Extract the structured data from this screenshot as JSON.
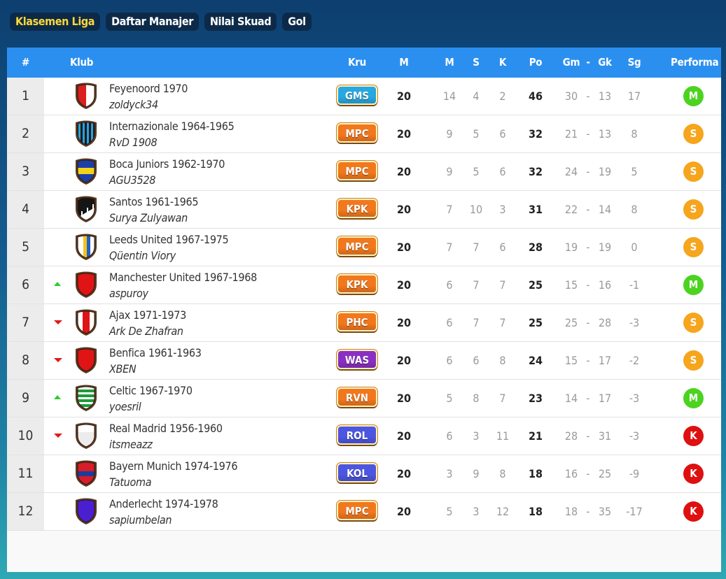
{
  "tabs": [
    {
      "label": "Klasemen Liga",
      "active": true
    },
    {
      "label": "Daftar Manajer",
      "active": false
    },
    {
      "label": "Nilai Skuad",
      "active": false
    },
    {
      "label": "Gol",
      "active": false
    }
  ],
  "header": {
    "rank": "#",
    "club": "Klub",
    "crew": "Kru",
    "played": "M",
    "wins": "M",
    "draws": "S",
    "losses": "K",
    "points": "Po",
    "goals_for": "Gm",
    "dash": "-",
    "goals_against": "Gk",
    "goal_diff": "Sg",
    "performance": "Performa"
  },
  "colors": {
    "header_bg": "#2b8ff0",
    "perf_M": "#4cd31f",
    "perf_S": "#f6a51c",
    "perf_K": "#de1010",
    "trend_up": "#2ecc2e",
    "trend_down": "#e01a1a"
  },
  "standings": [
    {
      "rank": "1",
      "trend": "none",
      "crest_icon": "shield-red-white-icon",
      "club": "Feyenoord 1970",
      "manager": "zoldyck34",
      "crew": "GMS",
      "crew_color": "#27a8e0",
      "played": "20",
      "w": "14",
      "d": "4",
      "l": "2",
      "pts": "46",
      "gf": "30",
      "ga": "13",
      "gd": "17",
      "perf": "M"
    },
    {
      "rank": "2",
      "trend": "none",
      "crest_icon": "shield-blue-black-stripes-icon",
      "club": "Internazionale 1964-1965",
      "manager": "RvD 1908",
      "crew": "MPC",
      "crew_color": "#f2781e",
      "played": "20",
      "w": "9",
      "d": "5",
      "l": "6",
      "pts": "32",
      "gf": "21",
      "ga": "13",
      "gd": "8",
      "perf": "S"
    },
    {
      "rank": "3",
      "trend": "none",
      "crest_icon": "shield-blue-yellow-icon",
      "club": "Boca Juniors 1962-1970",
      "manager": "AGU3528",
      "crew": "MPC",
      "crew_color": "#f2781e",
      "played": "20",
      "w": "9",
      "d": "5",
      "l": "6",
      "pts": "32",
      "gf": "24",
      "ga": "19",
      "gd": "5",
      "perf": "S"
    },
    {
      "rank": "4",
      "trend": "none",
      "crest_icon": "shield-black-white-sash-icon",
      "club": "Santos 1961-1965",
      "manager": "Surya Zulyawan",
      "crew": "KPK",
      "crew_color": "#f2781e",
      "played": "20",
      "w": "7",
      "d": "10",
      "l": "3",
      "pts": "31",
      "gf": "22",
      "ga": "14",
      "gd": "8",
      "perf": "S"
    },
    {
      "rank": "5",
      "trend": "none",
      "crest_icon": "shield-white-yellow-blue-icon",
      "club": "Leeds United 1967-1975",
      "manager": "Qüentin Viory",
      "crew": "MPC",
      "crew_color": "#f2781e",
      "played": "20",
      "w": "7",
      "d": "7",
      "l": "6",
      "pts": "28",
      "gf": "19",
      "ga": "19",
      "gd": "0",
      "perf": "S"
    },
    {
      "rank": "6",
      "trend": "up",
      "crest_icon": "shield-red-icon",
      "club": "Manchester United 1967-1968",
      "manager": "aspuroy",
      "crew": "KPK",
      "crew_color": "#f2781e",
      "played": "20",
      "w": "6",
      "d": "7",
      "l": "7",
      "pts": "25",
      "gf": "15",
      "ga": "16",
      "gd": "-1",
      "perf": "M"
    },
    {
      "rank": "7",
      "trend": "down",
      "crest_icon": "shield-white-red-stripe-icon",
      "club": "Ajax 1971-1973",
      "manager": "Ark De Zhafran",
      "crew": "PHC",
      "crew_color": "#f2781e",
      "played": "20",
      "w": "6",
      "d": "7",
      "l": "7",
      "pts": "25",
      "gf": "25",
      "ga": "28",
      "gd": "-3",
      "perf": "S"
    },
    {
      "rank": "8",
      "trend": "down",
      "crest_icon": "shield-red-icon",
      "club": "Benfica 1961-1963",
      "manager": "XBEN",
      "crew": "WAS",
      "crew_color": "#8a2fc4",
      "played": "20",
      "w": "6",
      "d": "6",
      "l": "8",
      "pts": "24",
      "gf": "15",
      "ga": "17",
      "gd": "-2",
      "perf": "S"
    },
    {
      "rank": "9",
      "trend": "up",
      "crest_icon": "shield-green-white-hoops-icon",
      "club": "Celtic 1967-1970",
      "manager": "yoesril",
      "crew": "RVN",
      "crew_color": "#f2781e",
      "played": "20",
      "w": "5",
      "d": "8",
      "l": "7",
      "pts": "23",
      "gf": "14",
      "ga": "17",
      "gd": "-3",
      "perf": "M"
    },
    {
      "rank": "10",
      "trend": "down",
      "crest_icon": "shield-white-icon",
      "club": "Real Madrid 1956-1960",
      "manager": "itsmeazz",
      "crew": "ROL",
      "crew_color": "#4d56e0",
      "played": "20",
      "w": "6",
      "d": "3",
      "l": "11",
      "pts": "21",
      "gf": "28",
      "ga": "31",
      "gd": "-3",
      "perf": "K"
    },
    {
      "rank": "11",
      "trend": "none",
      "crest_icon": "shield-red-blue-icon",
      "club": "Bayern Munich 1974-1976",
      "manager": "Tatuoma",
      "crew": "KOL",
      "crew_color": "#4d56e0",
      "played": "20",
      "w": "3",
      "d": "9",
      "l": "8",
      "pts": "18",
      "gf": "16",
      "ga": "25",
      "gd": "-9",
      "perf": "K"
    },
    {
      "rank": "12",
      "trend": "none",
      "crest_icon": "shield-purple-icon",
      "club": "Anderlecht 1974-1978",
      "manager": "sapiumbelan",
      "crew": "MPC",
      "crew_color": "#f2781e",
      "played": "20",
      "w": "5",
      "d": "3",
      "l": "12",
      "pts": "18",
      "gf": "18",
      "ga": "35",
      "gd": "-17",
      "perf": "K"
    }
  ]
}
